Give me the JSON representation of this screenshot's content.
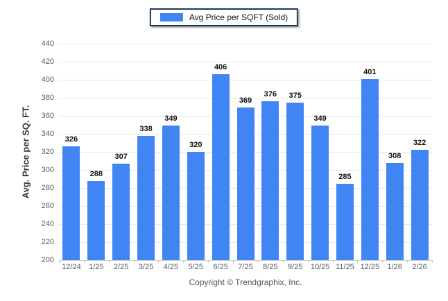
{
  "legend": {
    "label": "Avg Price per SQFT (Sold)"
  },
  "footer": {
    "copyright": "Copyright © Trendgraphix, Inc."
  },
  "chart_data": {
    "type": "bar",
    "title": "",
    "legend": "Avg Price per SQFT (Sold)",
    "legend_position": "top-center",
    "categories": [
      "12/24",
      "1/25",
      "2/25",
      "3/25",
      "4/25",
      "5/25",
      "6/25",
      "7/25",
      "8/25",
      "9/25",
      "10/25",
      "11/25",
      "12/25",
      "1/26",
      "2/26"
    ],
    "values": [
      326,
      288,
      307,
      338,
      349,
      320,
      406,
      369,
      376,
      375,
      349,
      285,
      401,
      308,
      322
    ],
    "xlabel": "",
    "ylabel": "Avg. Price per SQ. FT.",
    "ylim": [
      200,
      440
    ],
    "ytick_step": 20,
    "grid": "horizontal",
    "colors": {
      "bar": "#4184f3",
      "legend_border": "#17375e",
      "gridline": "#e7e7e7",
      "axis_line": "#c9c9c9",
      "y_tick_text": "#5a5a5a",
      "x_tick_text": "#4e5a68",
      "value_label_text": "#111111",
      "copyright_text": "#555555"
    }
  }
}
